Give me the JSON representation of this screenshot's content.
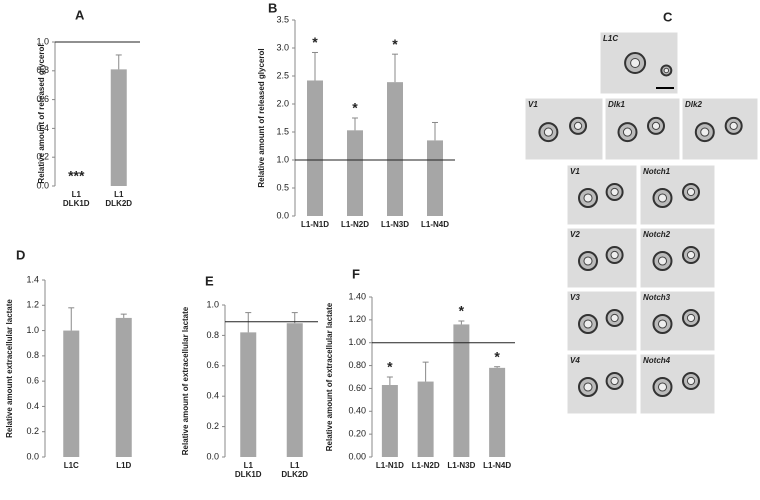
{
  "chart_data": [
    {
      "type": "bar",
      "panel": "A",
      "ylabel": "Relative amount of released glycerol",
      "categories": [
        "L1 DLK1D",
        "L1 DLK2D"
      ],
      "values": [
        0,
        0.81
      ],
      "errors": [
        null,
        0.1
      ],
      "annotations": [
        "***",
        null
      ],
      "color": "#a6a6a6",
      "hline": 1.0,
      "ylim": [
        0,
        1.0
      ],
      "yticks": [
        {
          "value": 0,
          "label": "0.0"
        },
        {
          "value": 0.2,
          "label": "0.2"
        },
        {
          "value": 0.4,
          "label": "0.4"
        },
        {
          "value": 0.6,
          "label": "0.6"
        },
        {
          "value": 0.8,
          "label": "0.8"
        },
        {
          "value": 1.0,
          "label": "1.0"
        }
      ]
    },
    {
      "type": "bar",
      "panel": "B",
      "ylabel": "Relative amount of released glycerol",
      "categories": [
        "L1-N1D",
        "L1-N2D",
        "L1-N3D",
        "L1-N4D"
      ],
      "values": [
        2.42,
        1.53,
        2.39,
        1.35
      ],
      "errors": [
        0.5,
        0.22,
        0.5,
        0.32
      ],
      "annotations": [
        "*",
        "*",
        "*",
        null
      ],
      "color": "#a6a6a6",
      "hline": 1.0,
      "ylim": [
        0,
        3.5
      ],
      "yticks": [
        {
          "value": 0,
          "label": "0.0"
        },
        {
          "value": 0.5,
          "label": "0.5"
        },
        {
          "value": 1.0,
          "label": "1.0"
        },
        {
          "value": 1.5,
          "label": "1.5"
        },
        {
          "value": 2.0,
          "label": "2.0"
        },
        {
          "value": 2.5,
          "label": "2.5"
        },
        {
          "value": 3.0,
          "label": "3.0"
        },
        {
          "value": 3.5,
          "label": "3.5"
        }
      ]
    },
    {
      "type": "bar",
      "panel": "D",
      "ylabel": "Relative amount extracellular lactate",
      "categories": [
        "L1C",
        "L1D"
      ],
      "values": [
        1.0,
        1.1
      ],
      "errors": [
        0.18,
        0.03
      ],
      "color": "#a6a6a6",
      "ylim": [
        0,
        1.4
      ],
      "yticks": [
        {
          "value": 0,
          "label": "0.0"
        },
        {
          "value": 0.2,
          "label": "0.2"
        },
        {
          "value": 0.4,
          "label": "0.4"
        },
        {
          "value": 0.6,
          "label": "0.6"
        },
        {
          "value": 0.8,
          "label": "0.8"
        },
        {
          "value": 1.0,
          "label": "1.0"
        },
        {
          "value": 1.2,
          "label": "1.2"
        },
        {
          "value": 1.4,
          "label": "1.4"
        }
      ]
    },
    {
      "type": "bar",
      "panel": "E",
      "ylabel": "Relative amount of extracellular lactate",
      "categories": [
        "L1 DLK1D",
        "L1 DLK2D"
      ],
      "values": [
        0.82,
        0.88
      ],
      "errors": [
        0.13,
        0.07
      ],
      "color": "#a6a6a6",
      "hline": 0.89,
      "ylim": [
        0,
        1.0
      ],
      "yticks": [
        {
          "value": 0,
          "label": "0.0"
        },
        {
          "value": 0.2,
          "label": "0.2"
        },
        {
          "value": 0.4,
          "label": "0.4"
        },
        {
          "value": 0.6,
          "label": "0.6"
        },
        {
          "value": 0.8,
          "label": "0.8"
        },
        {
          "value": 1.0,
          "label": "1.0"
        }
      ]
    },
    {
      "type": "bar",
      "panel": "F",
      "ylabel": "Relative amount of extracellular lactate",
      "categories": [
        "L1-N1D",
        "L1-N2D",
        "L1-N3D",
        "L1-N4D"
      ],
      "values": [
        0.63,
        0.66,
        1.16,
        0.78
      ],
      "errors": [
        0.07,
        0.17,
        0.03,
        0.01
      ],
      "annotations": [
        "*",
        null,
        "*",
        "*"
      ],
      "color": "#a6a6a6",
      "hline": 1.0,
      "ylim": [
        0,
        1.4
      ],
      "yticks": [
        {
          "value": 0,
          "label": "0.00"
        },
        {
          "value": 0.2,
          "label": "0.20"
        },
        {
          "value": 0.4,
          "label": "0.40"
        },
        {
          "value": 0.6,
          "label": "0.60"
        },
        {
          "value": 0.8,
          "label": "0.80"
        },
        {
          "value": 1.0,
          "label": "1.00"
        },
        {
          "value": 1.2,
          "label": "1.20"
        },
        {
          "value": 1.4,
          "label": "1.40"
        }
      ]
    }
  ],
  "micrographs": {
    "panel": "C",
    "labels": [
      "L1C",
      "V1",
      "Dlk1",
      "Dlk2",
      "V1",
      "Notch1",
      "V2",
      "Notch2",
      "V3",
      "Notch3",
      "V4",
      "Notch4"
    ]
  }
}
